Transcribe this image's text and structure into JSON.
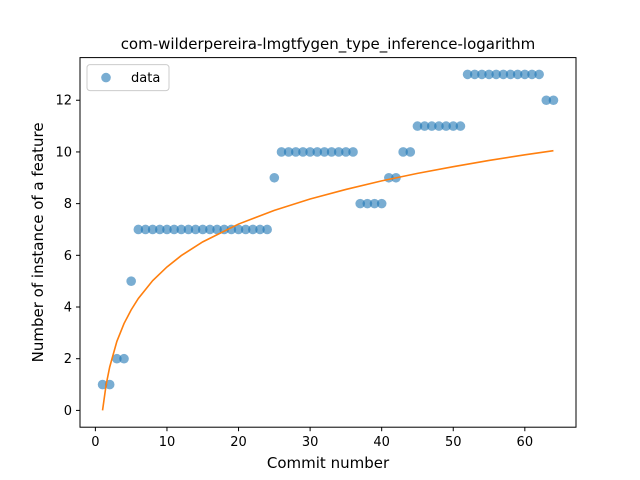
{
  "chart_data": {
    "type": "scatter",
    "title": "com-wilderpereira-lmgtfygen_type_inference-logarithm",
    "xlabel": "Commit number",
    "ylabel": "Number of instance of a feature",
    "xlim": [
      -2.15,
      67.15
    ],
    "ylim": [
      -0.65,
      13.65
    ],
    "xticks": [
      0,
      10,
      20,
      30,
      40,
      50,
      60
    ],
    "yticks": [
      0,
      2,
      4,
      6,
      8,
      10,
      12
    ],
    "grid": false,
    "legend": {
      "placement": "top-left",
      "entries": [
        "data"
      ]
    },
    "series": [
      {
        "name": "data",
        "kind": "scatter",
        "color": "#1f77b4",
        "x": [
          1,
          2,
          3,
          4,
          5,
          6,
          7,
          8,
          9,
          10,
          11,
          12,
          13,
          14,
          15,
          16,
          17,
          18,
          19,
          20,
          21,
          22,
          23,
          24,
          25,
          26,
          27,
          28,
          29,
          30,
          31,
          32,
          33,
          34,
          35,
          36,
          37,
          38,
          39,
          40,
          41,
          42,
          43,
          44,
          45,
          46,
          47,
          48,
          49,
          50,
          51,
          52,
          53,
          54,
          55,
          56,
          57,
          58,
          59,
          60,
          61,
          62,
          63,
          64
        ],
        "y": [
          1,
          1,
          2,
          2,
          5,
          7,
          7,
          7,
          7,
          7,
          7,
          7,
          7,
          7,
          7,
          7,
          7,
          7,
          7,
          7,
          7,
          7,
          7,
          7,
          9,
          10,
          10,
          10,
          10,
          10,
          10,
          10,
          10,
          10,
          10,
          10,
          8,
          8,
          8,
          8,
          9,
          9,
          10,
          10,
          11,
          11,
          11,
          11,
          11,
          11,
          11,
          13,
          13,
          13,
          13,
          13,
          13,
          13,
          13,
          13,
          13,
          13,
          12,
          12
        ]
      },
      {
        "name": "",
        "kind": "line",
        "color": "#ff7f0e",
        "x": [
          1,
          1.5,
          2,
          3,
          4,
          5,
          6,
          8,
          10,
          12,
          15,
          20,
          25,
          30,
          35,
          40,
          45,
          50,
          55,
          60,
          64
        ],
        "y": [
          0,
          0.99,
          1.68,
          2.67,
          3.36,
          3.89,
          4.33,
          5.02,
          5.55,
          5.99,
          6.52,
          7.21,
          7.74,
          8.18,
          8.55,
          8.88,
          9.17,
          9.43,
          9.67,
          9.89,
          10.05
        ]
      }
    ]
  }
}
